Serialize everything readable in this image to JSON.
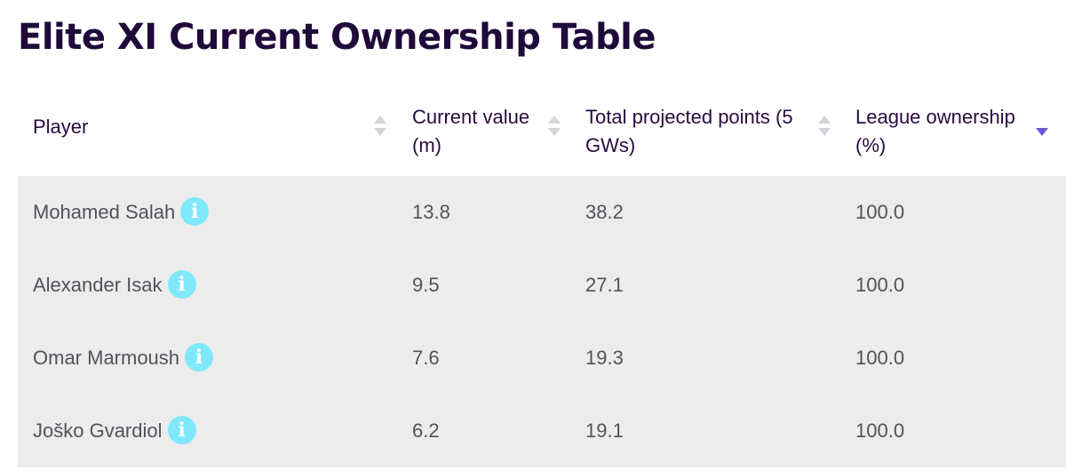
{
  "title": "Elite XI Current Ownership Table",
  "columns": [
    {
      "label": "Player",
      "sort": "none"
    },
    {
      "label": "Current value (m)",
      "sort": "none"
    },
    {
      "label": "Total projected points (5 GWs)",
      "sort": "none"
    },
    {
      "label": "League ownership (%)",
      "sort": "descending"
    }
  ],
  "rows": [
    {
      "player": "Mohamed Salah",
      "value": "13.8",
      "points": "38.2",
      "ownership": "100.0"
    },
    {
      "player": "Alexander Isak",
      "value": "9.5",
      "points": "27.1",
      "ownership": "100.0"
    },
    {
      "player": "Omar Marmoush",
      "value": "7.6",
      "points": "19.3",
      "ownership": "100.0"
    },
    {
      "player": "Joško Gvardiol",
      "value": "6.2",
      "points": "19.1",
      "ownership": "100.0"
    }
  ],
  "icons": {
    "info": "info-icon",
    "sort": "sort-arrows-icon"
  },
  "colors": {
    "title": "#1f0a3a",
    "row_background": "#ececec",
    "info_icon": "#7fe8fb",
    "active_sort": "#6c58d6"
  }
}
